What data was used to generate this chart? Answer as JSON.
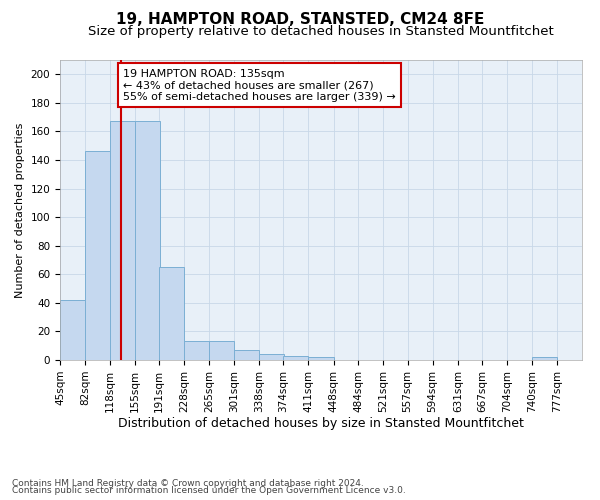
{
  "title1": "19, HAMPTON ROAD, STANSTED, CM24 8FE",
  "title2": "Size of property relative to detached houses in Stansted Mountfitchet",
  "xlabel": "Distribution of detached houses by size in Stansted Mountfitchet",
  "ylabel": "Number of detached properties",
  "footnote1": "Contains HM Land Registry data © Crown copyright and database right 2024.",
  "footnote2": "Contains public sector information licensed under the Open Government Licence v3.0.",
  "bins": [
    45,
    82,
    118,
    155,
    191,
    228,
    265,
    301,
    338,
    374,
    411,
    448,
    484,
    521,
    557,
    594,
    631,
    667,
    704,
    740,
    777
  ],
  "values": [
    42,
    146,
    167,
    167,
    65,
    13,
    13,
    7,
    4,
    3,
    2,
    0,
    0,
    0,
    0,
    0,
    0,
    0,
    0,
    2,
    0
  ],
  "bar_color": "#C5D8EF",
  "bar_edge_color": "#7BAFD4",
  "red_line_x": 135,
  "red_line_color": "#CC0000",
  "annotation_title": "19 HAMPTON ROAD: 135sqm",
  "annotation_line1": "← 43% of detached houses are smaller (267)",
  "annotation_line2": "55% of semi-detached houses are larger (339) →",
  "annotation_box_edge": "#CC0000",
  "ylim": [
    0,
    210
  ],
  "yticks": [
    0,
    20,
    40,
    60,
    80,
    100,
    120,
    140,
    160,
    180,
    200
  ],
  "bg_color": "#FFFFFF",
  "axes_bg_color": "#E8F0F8",
  "grid_color": "#C8D8E8",
  "title1_fontsize": 11,
  "title2_fontsize": 9.5,
  "xlabel_fontsize": 9,
  "ylabel_fontsize": 8,
  "tick_fontsize": 7.5,
  "annot_fontsize": 8,
  "footnote_fontsize": 6.5,
  "bin_width": 37
}
